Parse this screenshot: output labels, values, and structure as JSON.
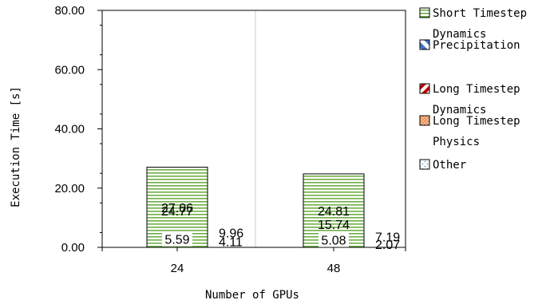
{
  "chart_data": {
    "type": "bar",
    "stacked": true,
    "categories": [
      "24",
      "48"
    ],
    "series": [
      {
        "name": "Other",
        "values": [
          5.59,
          5.08
        ],
        "color": "#dce9f6",
        "pattern": "dots"
      },
      {
        "name": "Long Timestep Physics",
        "values": [
          24.77,
          15.74
        ],
        "color": "#f4b183",
        "pattern": "crosshatch-fine"
      },
      {
        "name": "Long Timestep Dynamics",
        "values": [
          4.11,
          2.07
        ],
        "color": "#c00000",
        "pattern": "diagonal-up-bold"
      },
      {
        "name": "Precipitation",
        "values": [
          9.96,
          7.19
        ],
        "color": "#4472c4",
        "pattern": "diagonal-down-wide"
      },
      {
        "name": "Short Timestep Dynamics",
        "values": [
          27.06,
          24.81
        ],
        "color": "#70ad47",
        "pattern": "horizontal-lines"
      }
    ],
    "legend_entries": [
      {
        "series": "Short Timestep Dynamics",
        "lines": [
          "Short Timestep",
          "Dynamics"
        ]
      },
      {
        "series": "Precipitation",
        "lines": [
          "Precipitation"
        ]
      },
      {
        "series": "Long Timestep Dynamics",
        "lines": [
          "Long Timestep",
          "Dynamics"
        ]
      },
      {
        "series": "Long Timestep Physics",
        "lines": [
          "Long Timestep",
          "Physics"
        ]
      },
      {
        "series": "Other",
        "lines": [
          "Other"
        ]
      }
    ],
    "data_labels": [
      [
        "5.59",
        "24.77",
        "4.11",
        "9.96",
        "27.06"
      ],
      [
        "5.08",
        "15.74",
        "2.07",
        "7.19",
        "24.81"
      ]
    ],
    "xlabel": "Number of GPUs",
    "ylabel": "Execution Time [s]",
    "ylim": [
      0,
      80
    ],
    "yticks": [
      "0.00",
      "20.00",
      "40.00",
      "60.00",
      "80.00"
    ],
    "grid": "vertical",
    "legend_position": "right"
  }
}
